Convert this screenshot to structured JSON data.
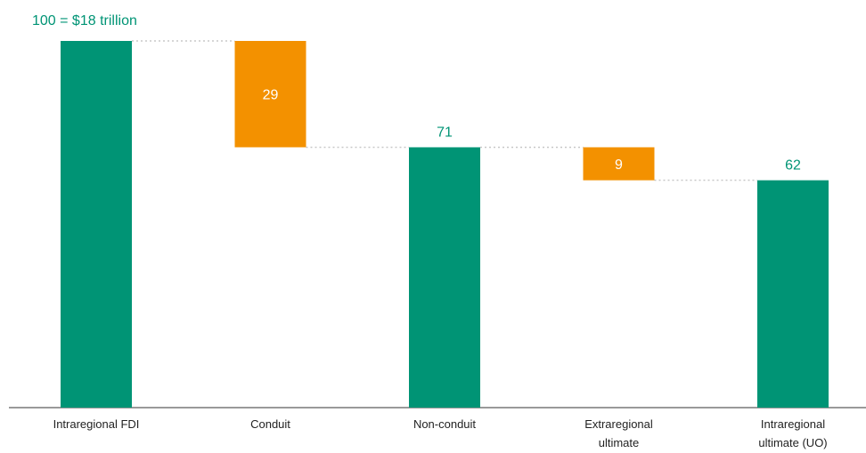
{
  "chart_data": {
    "type": "bar",
    "subtype": "waterfall",
    "title": "",
    "xlabel": "",
    "ylabel": "",
    "ylim": [
      0,
      100
    ],
    "grid": false,
    "legend": "none",
    "colors": {
      "total": "#009475",
      "decrement": "#F39100",
      "connector": "#c8c8c8",
      "axis": "#333333"
    },
    "annotation": "100 = $18 trillion",
    "categories": [
      [
        "Intraregional FDI"
      ],
      [
        "Conduit"
      ],
      [
        "Non-conduit"
      ],
      [
        "Extraregional",
        "ultimate"
      ],
      [
        "Intraregional",
        "ultimate (UO)"
      ]
    ],
    "bars": [
      {
        "kind": "total",
        "start": 0,
        "end": 100,
        "label": ""
      },
      {
        "kind": "decrement",
        "start": 71,
        "end": 100,
        "label": "29"
      },
      {
        "kind": "total",
        "start": 0,
        "end": 71,
        "label": "71"
      },
      {
        "kind": "decrement",
        "start": 62,
        "end": 71,
        "label": "9"
      },
      {
        "kind": "total",
        "start": 0,
        "end": 62,
        "label": "62"
      }
    ]
  }
}
